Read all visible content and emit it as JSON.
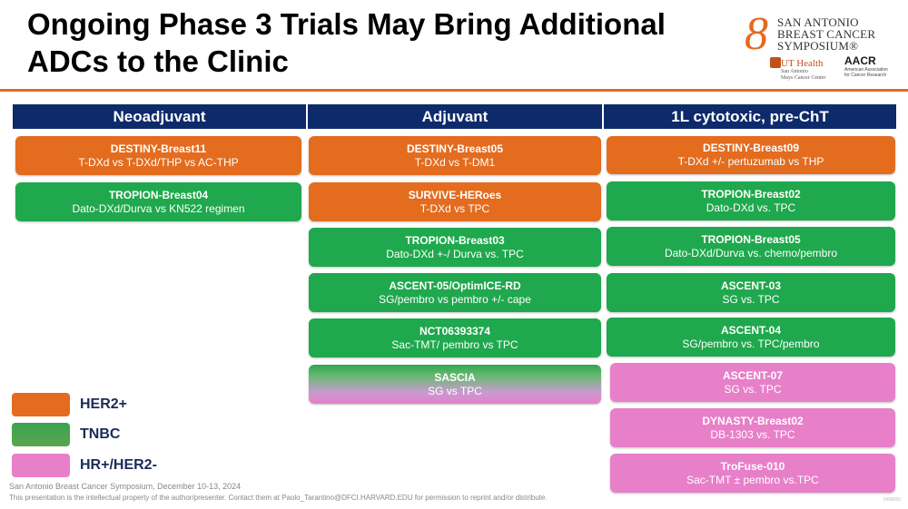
{
  "title": "Ongoing Phase 3 Trials May Bring Additional ADCs to the Clinic",
  "logo": {
    "symposium": [
      "SAN ANTONIO",
      "BREAST CANCER",
      "SYMPOSIUM®"
    ],
    "ut_health": "UT Health",
    "ut_sub": [
      "San Antonio",
      "Mays Cancer Center"
    ],
    "aacr": "AACR",
    "aacr_sub": [
      "American Association",
      "for Cancer Research"
    ]
  },
  "columns": [
    {
      "header": "Neoadjuvant",
      "trials": [
        {
          "name": "DESTINY-Breast11",
          "desc": "T-DXd vs T-DXd/THP vs AC-THP",
          "type": "HER2+"
        },
        {
          "name": "TROPION-Breast04",
          "desc": "Dato-DXd/Durva vs KN522 regimen",
          "type": "TNBC"
        }
      ]
    },
    {
      "header": "Adjuvant",
      "trials": [
        {
          "name": "DESTINY-Breast05",
          "desc": "T-DXd vs T-DM1",
          "type": "HER2+"
        },
        {
          "name": "SURVIVE-HERoes",
          "desc": "T-DXd vs TPC",
          "type": "HER2+"
        },
        {
          "name": "TROPION-Breast03",
          "desc": "Dato-DXd +-/ Durva vs. TPC",
          "type": "TNBC"
        },
        {
          "name": "ASCENT-05/OptimICE-RD",
          "desc": "SG/pembro vs pembro +/- cape",
          "type": "TNBC"
        },
        {
          "name": "NCT06393374",
          "desc": "Sac-TMT/ pembro vs TPC",
          "type": "TNBC"
        },
        {
          "name": "SASCIA",
          "desc": "SG vs TPC",
          "type": "TNBC/HR+"
        }
      ]
    },
    {
      "header": "1L cytotoxic, pre-ChT",
      "trials": [
        {
          "name": "DESTINY-Breast09",
          "desc": "T-DXd +/- pertuzumab vs THP",
          "type": "HER2+"
        },
        {
          "name": "TROPION-Breast02",
          "desc": "Dato-DXd vs. TPC",
          "type": "TNBC"
        },
        {
          "name": "TROPION-Breast05",
          "desc": "Dato-DXd/Durva vs. chemo/pembro",
          "type": "TNBC"
        },
        {
          "name": "ASCENT-03",
          "desc": "SG vs. TPC",
          "type": "TNBC"
        },
        {
          "name": "ASCENT-04",
          "desc": "SG/pembro vs. TPC/pembro",
          "type": "TNBC"
        },
        {
          "name": "ASCENT-07",
          "desc": "SG vs. TPC",
          "type": "HR+/HER2-"
        },
        {
          "name": "DYNASTY-Breast02",
          "desc": "DB-1303 vs. TPC",
          "type": "HR+/HER2-"
        },
        {
          "name": "TroFuse-010",
          "desc": "Sac-TMT ± pembro vs.TPC",
          "type": "HR+/HER2-"
        }
      ]
    }
  ],
  "legend": [
    {
      "label": "HER2+",
      "color": "#e36c1f"
    },
    {
      "label": "TNBC",
      "color": "#1fa84d"
    },
    {
      "label": "HR+/HER2-",
      "color": "#e87fc9"
    }
  ],
  "footer": {
    "line1": "San Antonio Breast Cancer Symposium, December 10-13, 2024",
    "line2": "This presentation is the intellectual property of the author/presenter. Contact them at Paolo_Tarantino@DFCI.HARVARD.EDU for permission to reprint and/or distribute."
  },
  "mini_code": "2408050"
}
